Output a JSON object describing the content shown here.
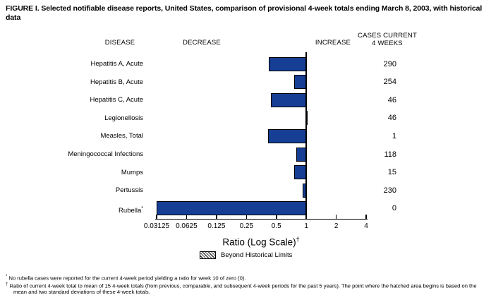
{
  "title": "FIGURE I. Selected notifiable disease reports, United States, comparison of provisional 4-week totals ending March 8, 2003, with historical data",
  "headers": {
    "disease": "DISEASE",
    "decrease": "DECREASE",
    "increase": "INCREASE",
    "cases_line1": "CASES CURRENT",
    "cases_line2": "4 WEEKS"
  },
  "chart_data": {
    "type": "bar",
    "orientation": "horizontal",
    "scale": "log2",
    "baseline": 1,
    "bar_color": "#153E94",
    "axis": {
      "ticks": [
        0.03125,
        0.0625,
        0.125,
        0.25,
        0.5,
        1,
        2,
        4
      ],
      "tick_labels": [
        "0.03125",
        "0.0625",
        "0.125",
        "0.25",
        "0.5",
        "1",
        "2",
        "4"
      ],
      "xlabel": "Ratio (Log Scale)",
      "xlabel_sup": "†",
      "xlim": [
        0.03125,
        4
      ]
    },
    "rows": [
      {
        "disease": "Hepatitis A, Acute",
        "sup": "",
        "ratio": 0.42,
        "cases": "290"
      },
      {
        "disease": "Hepatitis B, Acute",
        "sup": "",
        "ratio": 0.75,
        "cases": "254"
      },
      {
        "disease": "Hepatitis C, Acute",
        "sup": "",
        "ratio": 0.44,
        "cases": "46"
      },
      {
        "disease": "Legionellosis",
        "sup": "",
        "ratio": 1.04,
        "cases": "46"
      },
      {
        "disease": "Measles, Total",
        "sup": "",
        "ratio": 0.41,
        "cases": "1"
      },
      {
        "disease": "Meningococcal Infections",
        "sup": "",
        "ratio": 0.79,
        "cases": "118"
      },
      {
        "disease": "Mumps",
        "sup": "",
        "ratio": 0.75,
        "cases": "15"
      },
      {
        "disease": "Pertussis",
        "sup": "",
        "ratio": 0.92,
        "cases": "230"
      },
      {
        "disease": "Rubella",
        "sup": "*",
        "ratio": 0.03125,
        "cases": "0",
        "actual_ratio": 0,
        "clipped_at_axis_min": true
      }
    ],
    "legend": "Beyond Historical Limits"
  },
  "footnotes": [
    {
      "marker": "*",
      "text": "No rubella cases were reported for the current 4-week period yielding a ratio for week 10 of zero (0)."
    },
    {
      "marker": "†",
      "text": "Ratio of current 4-week total to mean of 15 4-week totals (from previous, comparable, and subsequent 4-week periods for the past 5 years). The point where the hatched area begins is based on the mean and two standard deviations of these 4-week totals."
    }
  ]
}
